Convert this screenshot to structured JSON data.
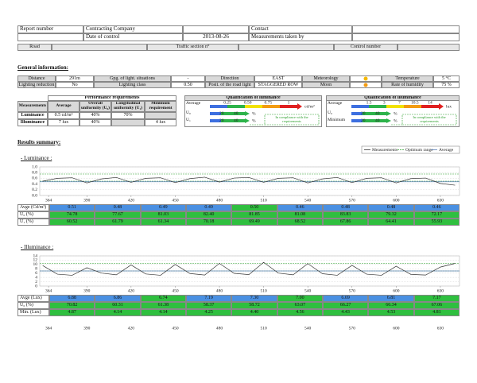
{
  "header": {
    "report_number": "Report number",
    "contracting_company": "Contracting Company",
    "contact": "Contact",
    "date_of_control": "Date of control",
    "date": "2013-08-26",
    "measurements_taken_by": "Measurements taken by",
    "road": "Road",
    "traffic_section": "Traffic section n°",
    "control_number": "Control number"
  },
  "general_information": {
    "title": "General information:",
    "distance_label": "Distance",
    "distance": "291m",
    "groups_label": "Gpg. of light. situations",
    "groups": "-",
    "direction_label": "Direction",
    "direction": "EAST",
    "meteorology_label": "Meteorology",
    "temperature_label": "Temperature",
    "temperature": "5 °C",
    "lighting_reduction_label": "Lighting reduction",
    "lighting_reduction": "No",
    "lighting_class_label": "Lighting class",
    "lighting_class": "0.50",
    "position_label": "Posit. of the road light",
    "position": "STAGGERED ROW",
    "moon_label": "Moon",
    "humidity_label": "Rate of humidity",
    "humidity": "75 %"
  },
  "performance_requirements": {
    "title": "Performance requirements",
    "columns": [
      "Measurements",
      "Average",
      "Overall uniformity (U₀)",
      "Longitudinal uniformity (U₁)",
      "Minimum requirement"
    ],
    "luminance": [
      "Luminance",
      "0.5 cd/m²",
      "40%",
      "70%"
    ],
    "illuminance": [
      "Illuminance",
      "7 lux",
      "40%",
      "4 lux"
    ]
  },
  "qualification_luminance": {
    "title": "Qualification of luminance",
    "scale": [
      "0.25",
      "0.50",
      "0.75",
      "1"
    ],
    "unit": "cd/m²",
    "rows": [
      "Average",
      "U₀",
      "U₁"
    ],
    "marks": [
      "20",
      "40"
    ],
    "percent": "%",
    "note": "In compliance with the requirements"
  },
  "qualification_illuminance": {
    "title": "Qualification of illuminance",
    "scale": [
      "1.5",
      "3",
      "7",
      "10.5",
      "14"
    ],
    "unit": "lux",
    "rows": [
      "Average",
      "U₀",
      "Minimum"
    ],
    "marks": [
      "20",
      "40"
    ],
    "percent": "%",
    "note": "In compliance with the requirements"
  },
  "results": {
    "title": "Results summary:",
    "legend": [
      "Measurements",
      "Optimum range",
      "Average"
    ]
  },
  "chart_data": [
    {
      "type": "line",
      "title": "- Luminance :",
      "xlim": [
        358,
        643
      ],
      "xticks": [
        364,
        390,
        420,
        450,
        480,
        510,
        540,
        570,
        600,
        630
      ],
      "ylim": [
        0,
        1
      ],
      "yticks": [
        {
          "value": 1,
          "label": "1.0"
        },
        0.8,
        0.6,
        0.4,
        0.2,
        {
          "value": 0,
          "label": "0.0"
        }
      ],
      "grid": true,
      "x": [
        360,
        370,
        380,
        390,
        400,
        410,
        420,
        430,
        440,
        450,
        460,
        470,
        480,
        490,
        500,
        510,
        520,
        530,
        540,
        550,
        560,
        570,
        580,
        590,
        600,
        610,
        620,
        630,
        640
      ],
      "series": [
        {
          "color": "#333333",
          "values": [
            0.5,
            0.6,
            0.62,
            0.44,
            0.58,
            0.63,
            0.46,
            0.6,
            0.62,
            0.45,
            0.59,
            0.64,
            0.47,
            0.61,
            0.63,
            0.46,
            0.6,
            0.62,
            0.44,
            0.58,
            0.63,
            0.45,
            0.6,
            0.62,
            0.44,
            0.59,
            0.61,
            0.42,
            0.36
          ]
        }
      ],
      "average": 0.48,
      "average_color": "#5b7fb5",
      "optimum_range": [
        0.5,
        0.75
      ],
      "optimum_color": "#2ca02c",
      "table": {
        "rows": [
          {
            "label": "Avge (Cd/m²)",
            "values": [
              0.51,
              0.48,
              0.49,
              0.49,
              0.5,
              0.46,
              0.48,
              0.48,
              0.46
            ],
            "value_labels": [
              "0.51",
              "0.48",
              "0.49",
              "0.49",
              "0.50",
              "0.46",
              "0.48",
              "0.48",
              "0.46"
            ],
            "colors": [
              "#4a90e2",
              "#4a90e2",
              "#4a90e2",
              "#4a90e2",
              "#2fbf3f",
              "#4a90e2",
              "#4a90e2",
              "#4a90e2",
              "#4a90e2"
            ]
          },
          {
            "label": "U₀ (%)",
            "values": [
              74.78,
              77.67,
              81.03,
              82.4,
              81.85,
              81.08,
              83.83,
              79.32,
              72.17
            ],
            "value_labels": [
              "74.78",
              "77.67",
              "81.03",
              "82.40",
              "81.85",
              "81.08",
              "83.83",
              "79.32",
              "72.17"
            ],
            "color": "#2fbf3f"
          },
          {
            "label": "U₁ (%)",
            "values": [
              60.52,
              61.79,
              61.34,
              70.18,
              69.49,
              68.52,
              67.86,
              64.41,
              55.93
            ],
            "color": "#2fbf3f"
          }
        ]
      }
    },
    {
      "type": "line",
      "title": "- Illuminance :",
      "xlim": [
        358,
        643
      ],
      "xticks": [
        364,
        390,
        420,
        450,
        480,
        510,
        540,
        570,
        600,
        630
      ],
      "ylim": [
        0,
        14
      ],
      "yticks": [
        14,
        12,
        10,
        8,
        6,
        4,
        2,
        0
      ],
      "grid": true,
      "x": [
        360,
        370,
        380,
        390,
        400,
        410,
        420,
        430,
        440,
        450,
        460,
        470,
        480,
        490,
        500,
        510,
        520,
        530,
        540,
        550,
        560,
        570,
        580,
        590,
        600,
        610,
        620,
        630,
        640
      ],
      "series": [
        {
          "color": "#333333",
          "values": [
            9.5,
            5.5,
            5,
            8.5,
            6,
            5.2,
            9.8,
            5.6,
            5,
            10,
            5.8,
            5.1,
            10.5,
            5.9,
            5.3,
            11,
            6,
            5.2,
            10.4,
            5.7,
            5,
            9.6,
            5.5,
            5,
            9.2,
            5.4,
            5.1,
            8.8,
            10.5
          ]
        }
      ],
      "average": 7,
      "average_color": "#5b7fb5",
      "optimum_range": [
        7,
        10.5
      ],
      "optimum_color": "#2ca02c",
      "table": {
        "rows": [
          {
            "label": "Avge (Lux)",
            "values": [
              6.88,
              6.86,
              6.74,
              7.19,
              7.3,
              7,
              6.69,
              6.81,
              7.17
            ],
            "value_labels": [
              "6.88",
              "6.86",
              "6.74",
              "7.19",
              "7.30",
              "7.00",
              "6.69",
              "6.81",
              "7.17"
            ],
            "colors": [
              "#4a90e2",
              "#4a90e2",
              "#2fbf3f",
              "#4a90e2",
              "#4a90e2",
              "#2fbf3f",
              "#4a90e2",
              "#4a90e2",
              "#2fbf3f"
            ]
          },
          {
            "label": "U₀ (%)",
            "values": [
              70.82,
              60.31,
              61.38,
              58.37,
              58.72,
              63.07,
              66.27,
              66.34,
              67.06
            ],
            "color": "#2fbf3f"
          },
          {
            "label": "Min. (Lux)",
            "values": [
              4.87,
              4.14,
              4.14,
              4.25,
              4.4,
              4.56,
              4.43,
              4.53,
              4.81
            ],
            "value_labels": [
              "4.87",
              "4.14",
              "4.14",
              "4.25",
              "4.40",
              "4.56",
              "4.43",
              "4.53",
              "4.81"
            ],
            "color": "#2fbf3f"
          }
        ]
      }
    }
  ]
}
